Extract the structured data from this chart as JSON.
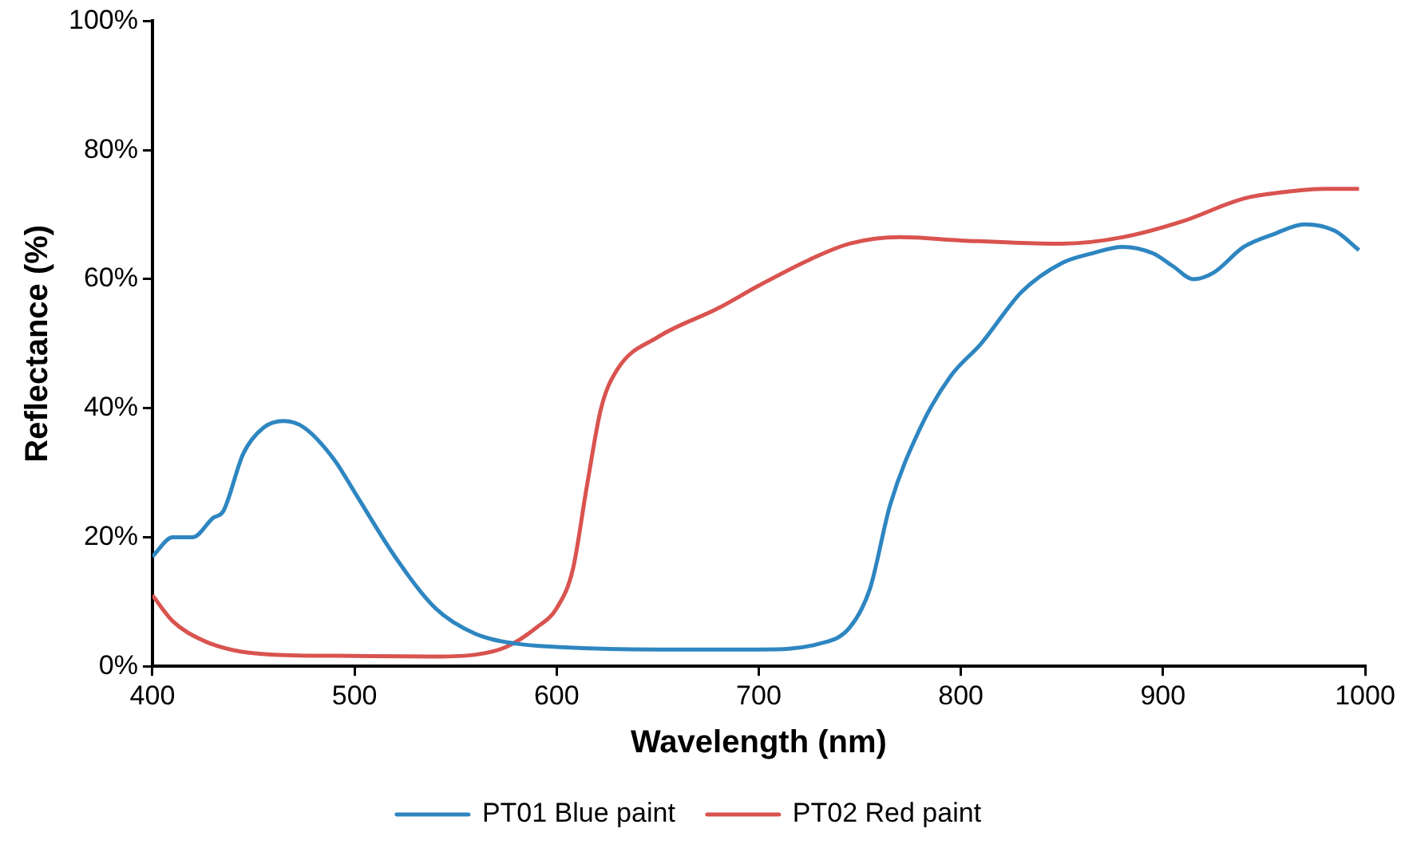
{
  "chart_data": {
    "type": "line",
    "xlabel": "Wavelength (nm)",
    "ylabel": "Reflectance (%)",
    "xlim": [
      400,
      1000
    ],
    "xticks": [
      400,
      500,
      600,
      700,
      800,
      900,
      1000
    ],
    "ylim": [
      0,
      100
    ],
    "yticks": [
      {
        "value": 0,
        "label": "0%"
      },
      {
        "value": 20,
        "label": "20%"
      },
      {
        "value": 40,
        "label": "40%"
      },
      {
        "value": 60,
        "label": "60%"
      },
      {
        "value": 80,
        "label": "80%"
      },
      {
        "value": 100,
        "label": "100%"
      }
    ],
    "grid": false,
    "legend": "bottom",
    "marker": "none",
    "line_style": "solid",
    "series": [
      {
        "name": "PT01 Blue paint",
        "color": "#2e86c1",
        "x": [
          400,
          410,
          420,
          430,
          435,
          445,
          455,
          465,
          475,
          490,
          500,
          520,
          540,
          560,
          580,
          600,
          650,
          700,
          730,
          745,
          755,
          765,
          780,
          795,
          810,
          830,
          850,
          865,
          880,
          895,
          905,
          915,
          925,
          940,
          955,
          970,
          985,
          997
        ],
        "values": [
          17,
          20,
          20,
          23,
          24,
          33,
          37,
          38,
          37,
          32,
          27,
          17,
          9,
          5,
          3.5,
          3,
          2.6,
          2.6,
          3.5,
          6,
          12,
          25,
          37,
          45,
          50,
          58,
          62.5,
          64,
          65,
          64,
          62,
          60,
          61,
          65,
          67,
          68.5,
          67.5,
          64.5
        ]
      },
      {
        "name": "PT02 Red paint",
        "color": "#d9534f",
        "x": [
          400,
          410,
          425,
          440,
          460,
          500,
          540,
          560,
          575,
          590,
          600,
          608,
          615,
          622,
          630,
          650,
          680,
          700,
          725,
          745,
          770,
          800,
          850,
          880,
          910,
          940,
          960,
          980,
          997
        ],
        "values": [
          11,
          7,
          4,
          2.5,
          1.8,
          1.6,
          1.5,
          1.8,
          3,
          6,
          9,
          15,
          28,
          40,
          46,
          51,
          55.5,
          59,
          63,
          65.5,
          66.5,
          66,
          65.5,
          66.5,
          69,
          72.5,
          73.5,
          74,
          74
        ]
      }
    ]
  }
}
